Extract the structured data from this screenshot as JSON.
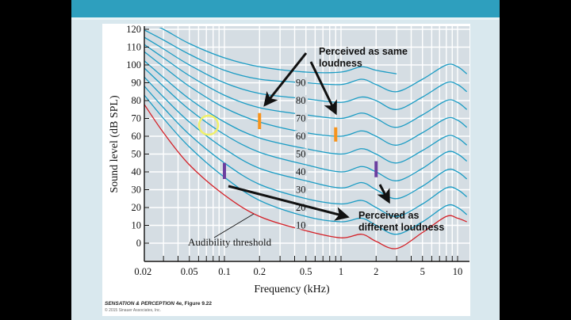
{
  "slide": {
    "caption_title": "SENSATION & PERCEPTION",
    "caption_edition": "4e, Figure 9.22",
    "caption_copyright": "© 2015 Sinauer Associates, Inc."
  },
  "colors": {
    "header_bar": "#2e9fbe",
    "plot_bg": "#d5dde3",
    "contour": "#1b9cc4",
    "threshold": "#d42027",
    "orange_marker": "#f7941d",
    "purple_marker": "#6b3fa0"
  },
  "chart_data": {
    "type": "line",
    "title": "",
    "xlabel": "Frequency (kHz)",
    "ylabel": "Sound level (dB SPL)",
    "xscale": "log",
    "xlim": [
      0.02,
      12
    ],
    "ylim": [
      -10,
      120
    ],
    "x_ticks": [
      0.02,
      0.05,
      0.1,
      0.2,
      0.5,
      1,
      2,
      5,
      10
    ],
    "x_tick_labels": [
      "0.02",
      "0.05",
      "0.1",
      "0.2",
      "0.5",
      "1",
      "2",
      "5",
      "10"
    ],
    "y_ticks": [
      0,
      10,
      20,
      30,
      40,
      50,
      60,
      70,
      80,
      90,
      100,
      110,
      120
    ],
    "y_tick_labels": [
      "0",
      "10",
      "20",
      "30",
      "40",
      "50",
      "60",
      "70",
      "80",
      "90",
      "100",
      "110",
      "120"
    ],
    "grid": true,
    "x": [
      0.02,
      0.03,
      0.05,
      0.1,
      0.2,
      0.5,
      1,
      1.5,
      2,
      3,
      5,
      8,
      10,
      12
    ],
    "series": [
      {
        "name": "Audibility threshold",
        "label": "Audibility threshold",
        "values": [
          79,
          62,
          44,
          27,
          15,
          7,
          3,
          5,
          1,
          -3,
          6,
          15,
          14,
          12
        ]
      },
      {
        "name": "10 phon",
        "label": "10",
        "values": [
          84,
          70,
          54,
          37,
          24,
          15,
          12,
          14,
          10,
          5,
          12,
          21,
          20,
          16
        ]
      },
      {
        "name": "20 phon",
        "label": "20",
        "values": [
          89,
          76,
          61,
          45,
          33,
          25,
          22,
          24,
          20,
          15,
          22,
          31,
          30,
          26
        ]
      },
      {
        "name": "30 phon",
        "label": "30",
        "values": [
          94,
          82,
          68,
          53,
          42,
          35,
          31,
          34,
          30,
          25,
          32,
          41,
          40,
          36
        ]
      },
      {
        "name": "40 phon",
        "label": "40",
        "values": [
          99,
          88,
          75,
          61,
          51,
          44,
          40,
          43,
          40,
          35,
          42,
          51,
          50,
          46
        ]
      },
      {
        "name": "50 phon",
        "label": "50",
        "values": [
          103,
          93,
          81,
          68,
          59,
          53,
          50,
          53,
          50,
          45,
          52,
          60,
          59,
          55
        ]
      },
      {
        "name": "60 phon",
        "label": "60",
        "values": [
          108,
          99,
          88,
          76,
          68,
          62,
          60,
          63,
          60,
          55,
          62,
          70,
          69,
          65
        ]
      },
      {
        "name": "70 phon",
        "label": "70",
        "values": [
          112,
          104,
          94,
          83,
          76,
          72,
          70,
          73,
          70,
          65,
          72,
          80,
          79,
          75
        ]
      },
      {
        "name": "80 phon",
        "label": "80",
        "values": [
          116,
          109,
          100,
          90,
          84,
          81,
          79,
          82,
          80,
          75,
          82,
          90,
          89,
          85
        ]
      },
      {
        "name": "90 phon",
        "label": "90",
        "values": [
          120,
          114,
          106,
          97,
          92,
          90,
          89,
          92,
          89,
          85,
          92,
          100,
          99,
          95
        ]
      },
      {
        "name": "100 phon",
        "label": "",
        "values": [
          125,
          120,
          112,
          104,
          99,
          96,
          96,
          99,
          97,
          95,
          null,
          null,
          null,
          null
        ]
      }
    ],
    "markers": [
      {
        "name": "orange-marker-1",
        "color": "orange",
        "x": 0.2,
        "y_range": [
          64,
          73
        ]
      },
      {
        "name": "orange-marker-2",
        "color": "orange",
        "x": 0.9,
        "y_range": [
          57,
          65
        ]
      },
      {
        "name": "purple-marker-1",
        "color": "purple",
        "x": 0.1,
        "y_range": [
          36,
          45
        ]
      },
      {
        "name": "purple-marker-2",
        "color": "purple",
        "x": 2,
        "y_range": [
          37,
          46
        ]
      }
    ],
    "annotations": [
      {
        "text_line1": "Perceived as same",
        "text_line2": "loudness"
      },
      {
        "text_line1": "Perceived as",
        "text_line2": "different loudness"
      },
      {
        "text": "Audibility threshold"
      }
    ]
  }
}
